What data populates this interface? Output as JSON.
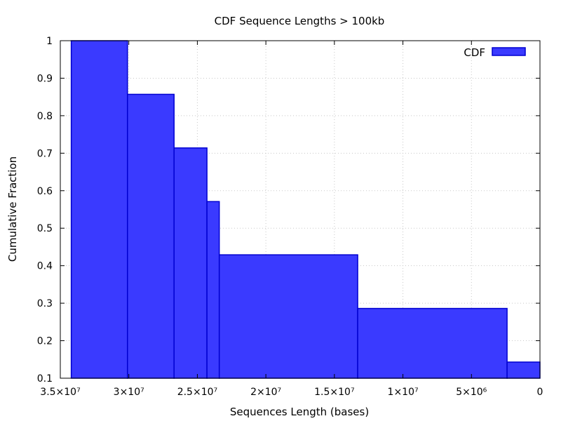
{
  "chart_data": {
    "type": "bar",
    "title": "CDF Sequence Lengths > 100kb",
    "xlabel": "Sequences Length (bases)",
    "ylabel": "Cumulative Fraction",
    "legend": {
      "label": "CDF",
      "position": "top-right"
    },
    "x_reversed": true,
    "xlim": [
      35000000,
      0
    ],
    "ylim": [
      0.1,
      1
    ],
    "grid": true,
    "x_ticks": [
      {
        "value": 35000000,
        "label": "3.5×10⁷"
      },
      {
        "value": 30000000,
        "label": "3×10⁷"
      },
      {
        "value": 25000000,
        "label": "2.5×10⁷"
      },
      {
        "value": 20000000,
        "label": "2×10⁷"
      },
      {
        "value": 15000000,
        "label": "1.5×10⁷"
      },
      {
        "value": 10000000,
        "label": "1×10⁷"
      },
      {
        "value": 5000000,
        "label": "5×10⁶"
      },
      {
        "value": 0,
        "label": "0"
      }
    ],
    "y_ticks": [
      {
        "value": 0.1,
        "label": "0.1"
      },
      {
        "value": 0.2,
        "label": "0.2"
      },
      {
        "value": 0.3,
        "label": "0.3"
      },
      {
        "value": 0.4,
        "label": "0.4"
      },
      {
        "value": 0.5,
        "label": "0.5"
      },
      {
        "value": 0.6,
        "label": "0.6"
      },
      {
        "value": 0.7,
        "label": "0.7"
      },
      {
        "value": 0.8,
        "label": "0.8"
      },
      {
        "value": 0.9,
        "label": "0.9"
      },
      {
        "value": 1,
        "label": "1"
      }
    ],
    "bars": [
      {
        "x_start": 34200000,
        "x_end": 30100000,
        "value": 1.0
      },
      {
        "x_start": 30100000,
        "x_end": 26700000,
        "value": 0.857
      },
      {
        "x_start": 26700000,
        "x_end": 24300000,
        "value": 0.714
      },
      {
        "x_start": 24300000,
        "x_end": 23400000,
        "value": 0.571
      },
      {
        "x_start": 23400000,
        "x_end": 13300000,
        "value": 0.429
      },
      {
        "x_start": 13300000,
        "x_end": 2400000,
        "value": 0.286
      },
      {
        "x_start": 2400000,
        "x_end": 0,
        "value": 0.143
      }
    ],
    "colors": {
      "fill": "#3a3aff",
      "stroke": "#0000d0"
    }
  }
}
